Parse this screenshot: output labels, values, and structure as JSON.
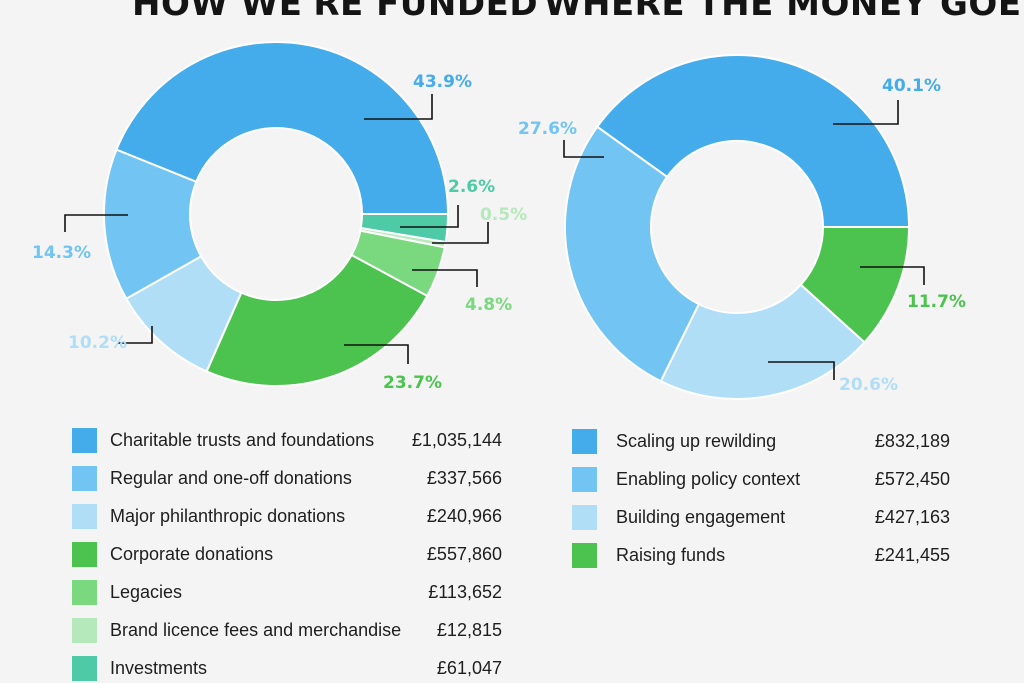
{
  "titles": {
    "left": "HOW WE'RE FUNDED",
    "right": "WHERE THE MONEY GOES"
  },
  "chart_data": [
    {
      "type": "pie",
      "title": "HOW WE'RE FUNDED",
      "slices": [
        {
          "label": "Charitable trusts and foundations",
          "amount": "£1,035,144",
          "percent": 43.9,
          "percent_label": "43.9%",
          "color": "#45acec"
        },
        {
          "label": "Regular and one-off donations",
          "amount": "£337,566",
          "percent": 14.3,
          "percent_label": "14.3%",
          "color": "#72c4f3"
        },
        {
          "label": "Major philanthropic donations",
          "amount": "£240,966",
          "percent": 10.2,
          "percent_label": "10.2%",
          "color": "#b1def7"
        },
        {
          "label": "Corporate donations",
          "amount": "£557,860",
          "percent": 23.7,
          "percent_label": "23.7%",
          "color": "#4dc34f"
        },
        {
          "label": "Legacies",
          "amount": "£113,652",
          "percent": 4.8,
          "percent_label": "4.8%",
          "color": "#7ad87f"
        },
        {
          "label": "Brand licence fees and merchandise",
          "amount": "£12,815",
          "percent": 0.5,
          "percent_label": "0.5%",
          "color": "#b5e9bb"
        },
        {
          "label": "Investments",
          "amount": "£61,047",
          "percent": 2.6,
          "percent_label": "2.6%",
          "color": "#4fcaa6"
        }
      ]
    },
    {
      "type": "pie",
      "title": "WHERE THE MONEY GOES",
      "slices": [
        {
          "label": "Scaling up rewilding",
          "amount": "£832,189",
          "percent": 40.1,
          "percent_label": "40.1%",
          "color": "#45acec"
        },
        {
          "label": "Enabling policy context",
          "amount": "£572,450",
          "percent": 27.6,
          "percent_label": "27.6%",
          "color": "#72c4f3"
        },
        {
          "label": "Building engagement",
          "amount": "£427,163",
          "percent": 20.6,
          "percent_label": "20.6%",
          "color": "#b1def7"
        },
        {
          "label": "Raising funds",
          "amount": "£241,455",
          "percent": 11.7,
          "percent_label": "11.7%",
          "color": "#4dc34f"
        }
      ]
    }
  ]
}
